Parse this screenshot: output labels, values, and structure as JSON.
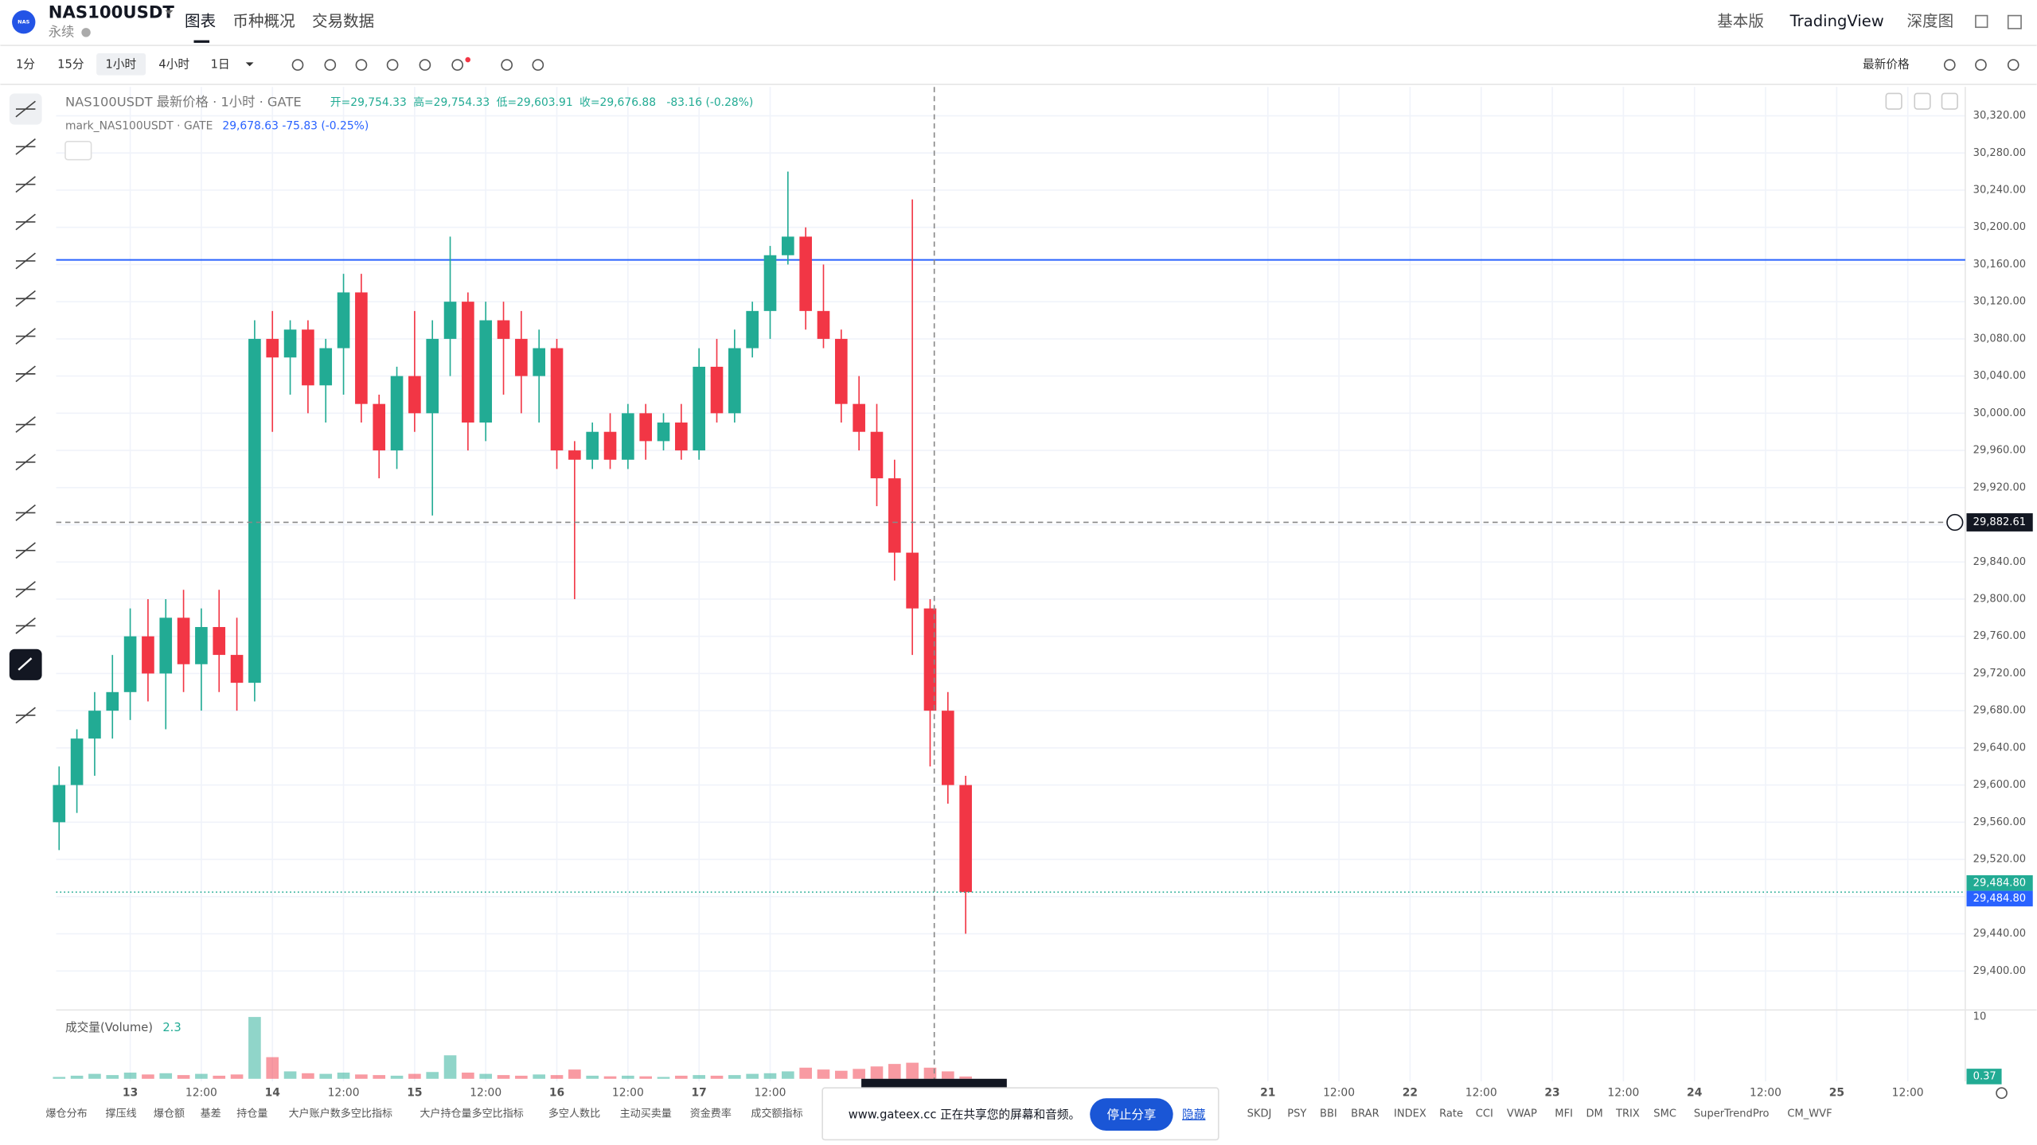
{
  "header": {
    "symbol": "NAS100USDT",
    "subtitle": "永续",
    "logo": "NAS",
    "tabs": [
      "图表",
      "币种概况",
      "交易数据"
    ],
    "right": [
      "基本版",
      "TradingView",
      "深度图"
    ]
  },
  "toolbar": {
    "intervals": [
      "1分",
      "15分",
      "1小时",
      "4小时",
      "1日"
    ],
    "price_type": "最新价格"
  },
  "legend": {
    "title": "NAS100USDT 最新价格 · 1小时 · GATE",
    "ohlc": [
      "开=29,754.33",
      "高=29,754.33",
      "低=29,603.91",
      "收=29,676.88"
    ],
    "change": "-83.16 (-0.28%)",
    "mark_title": "mark_NAS100USDT · GATE",
    "mark_values": "29,678.63 -75.83 (-0.25%)"
  },
  "chart_data": {
    "type": "candlestick",
    "up_color": "#22ab94",
    "down_color": "#f23645",
    "x": [
      -12,
      -9,
      -6,
      -3,
      0,
      3,
      6,
      9,
      12,
      15,
      18,
      21,
      24,
      27,
      30,
      33,
      36,
      39,
      42,
      45,
      48,
      51,
      54,
      57,
      60,
      63,
      66,
      69,
      72,
      75,
      78,
      81,
      84,
      87,
      90,
      93,
      96,
      99,
      102,
      105,
      108,
      111,
      114,
      117,
      120,
      123,
      126,
      129,
      132,
      135,
      138,
      141
    ],
    "open": [
      29560,
      29600,
      29650,
      29680,
      29700,
      29760,
      29720,
      29780,
      29730,
      29770,
      29740,
      29710,
      30080,
      30060,
      30090,
      30030,
      30070,
      30130,
      30010,
      29960,
      30040,
      30000,
      30080,
      30120,
      29990,
      30100,
      30080,
      30040,
      30070,
      29960,
      29950,
      29980,
      29950,
      30000,
      29970,
      29990,
      29960,
      30050,
      30000,
      30070,
      30110,
      30170,
      30190,
      30110,
      30080,
      30010,
      29980,
      29930,
      29850,
      29790,
      29680,
      29600
    ],
    "high": [
      29620,
      29660,
      29700,
      29740,
      29790,
      29800,
      29800,
      29810,
      29790,
      29810,
      29780,
      30100,
      30110,
      30100,
      30100,
      30080,
      30150,
      30150,
      30020,
      30050,
      30110,
      30100,
      30190,
      30130,
      30120,
      30120,
      30110,
      30090,
      30080,
      29970,
      29990,
      30000,
      30010,
      30010,
      30000,
      30010,
      30070,
      30080,
      30090,
      30120,
      30180,
      30260,
      30200,
      30160,
      30090,
      30040,
      30010,
      29950,
      30230,
      29800,
      29700,
      29610
    ],
    "low": [
      29530,
      29570,
      29610,
      29650,
      29670,
      29690,
      29660,
      29700,
      29680,
      29700,
      29680,
      29690,
      29980,
      30020,
      30000,
      29990,
      30020,
      29990,
      29930,
      29940,
      29980,
      29890,
      30040,
      29960,
      29970,
      30020,
      30000,
      29990,
      29940,
      29800,
      29940,
      29940,
      29940,
      29950,
      29960,
      29950,
      29950,
      29990,
      29990,
      30060,
      30080,
      30160,
      30090,
      30070,
      29990,
      29960,
      29900,
      29820,
      29740,
      29620,
      29580,
      29440
    ],
    "close": [
      29600,
      29650,
      29680,
      29700,
      29760,
      29720,
      29780,
      29730,
      29770,
      29740,
      29710,
      30080,
      30060,
      30090,
      30030,
      30070,
      30130,
      30010,
      29960,
      30040,
      30000,
      30080,
      30120,
      29990,
      30100,
      30080,
      30040,
      30070,
      29960,
      29950,
      29980,
      29950,
      30000,
      29970,
      29990,
      29960,
      30050,
      30000,
      30070,
      30110,
      30170,
      30190,
      30110,
      30080,
      30010,
      29980,
      29930,
      29850,
      29790,
      29680,
      29600,
      29484.8
    ],
    "xlim": [
      -12.5,
      309.7
    ],
    "xticks": [
      {
        "value": 0,
        "label": "13"
      },
      {
        "value": 12,
        "label": "12:00"
      },
      {
        "value": 24,
        "label": "14"
      },
      {
        "value": 36,
        "label": "12:00"
      },
      {
        "value": 48,
        "label": "15"
      },
      {
        "value": 60,
        "label": "12:00"
      },
      {
        "value": 72,
        "label": "16"
      },
      {
        "value": 84,
        "label": "12:00"
      },
      {
        "value": 96,
        "label": "17"
      },
      {
        "value": 108,
        "label": "12:00"
      },
      {
        "value": 192,
        "label": "21"
      },
      {
        "value": 204,
        "label": "12:00"
      },
      {
        "value": 216,
        "label": "22"
      },
      {
        "value": 228,
        "label": "12:00"
      },
      {
        "value": 240,
        "label": "23"
      },
      {
        "value": 252,
        "label": "12:00"
      },
      {
        "value": 264,
        "label": "24"
      },
      {
        "value": 276,
        "label": "12:00"
      },
      {
        "value": 288,
        "label": "25"
      },
      {
        "value": 300,
        "label": "12:00"
      }
    ],
    "ylim": [
      29358,
      30351
    ],
    "yticks": [
      {
        "value": 29400,
        "label": "29,400.00"
      },
      {
        "value": 29440,
        "label": "29,440.00"
      },
      {
        "value": 29480,
        "label": "29,480.00"
      },
      {
        "value": 29520,
        "label": "29,520.00"
      },
      {
        "value": 29560,
        "label": "29,560.00"
      },
      {
        "value": 29600,
        "label": "29,600.00"
      },
      {
        "value": 29640,
        "label": "29,640.00"
      },
      {
        "value": 29680,
        "label": "29,680.00"
      },
      {
        "value": 29720,
        "label": "29,720.00"
      },
      {
        "value": 29760,
        "label": "29,760.00"
      },
      {
        "value": 29800,
        "label": "29,800.00"
      },
      {
        "value": 29840,
        "label": "29,840.00"
      },
      {
        "value": 29880,
        "label": "29,880.00"
      },
      {
        "value": 29920,
        "label": "29,920.00"
      },
      {
        "value": 29960,
        "label": "29,960.00"
      },
      {
        "value": 30000,
        "label": "30,000.00"
      },
      {
        "value": 30040,
        "label": "30,040.00"
      },
      {
        "value": 30080,
        "label": "30,080.00"
      },
      {
        "value": 30120,
        "label": "30,120.00"
      },
      {
        "value": 30160,
        "label": "30,160.00"
      },
      {
        "value": 30200,
        "label": "30,200.00"
      },
      {
        "value": 30240,
        "label": "30,240.00"
      },
      {
        "value": 30280,
        "label": "30,280.00"
      },
      {
        "value": 30320,
        "label": "30,320.00"
      }
    ],
    "grid": true,
    "horizontal_line": {
      "value": 30165,
      "color": "#2962ff"
    },
    "crosshair": {
      "x": 135.7,
      "value": 29882.61,
      "label": "29,882.61"
    },
    "last_price": {
      "value": 29484.8,
      "label": "29,484.80",
      "color": "#22ab94",
      "mark_color": "#2962ff"
    },
    "volume": {
      "title": "成交量(Volume)",
      "current": "2.3",
      "values": [
        0.3,
        0.5,
        0.8,
        0.6,
        1.0,
        0.7,
        0.9,
        0.6,
        0.8,
        0.5,
        0.7,
        10,
        3.5,
        1.2,
        0.9,
        0.8,
        1.0,
        0.7,
        0.6,
        0.5,
        0.8,
        1.1,
        3.8,
        1.0,
        0.8,
        0.6,
        0.5,
        0.7,
        0.6,
        1.5,
        0.5,
        0.4,
        0.5,
        0.4,
        0.3,
        0.5,
        0.6,
        0.5,
        0.6,
        0.8,
        0.9,
        1.2,
        1.8,
        1.5,
        1.3,
        1.6,
        2.0,
        2.4,
        2.6,
        1.8,
        1.2,
        0.37
      ],
      "last_label": "0.37",
      "ylim": [
        0,
        10.5
      ],
      "yticks": [
        10
      ]
    }
  },
  "indicators_left": [
    "爆仓分布",
    "撑压线",
    "爆仓额",
    "基差",
    "持仓量",
    "大户账户数多空比指标",
    "大户持仓量多空比指标",
    "多空人数比",
    "主动买卖量",
    "资金费率",
    "成交额指标"
  ],
  "indicators_right": [
    "SKDJ",
    "PSY",
    "BBI",
    "BRAR",
    "INDEX",
    "Rate",
    "CCI",
    "VWAP",
    "MFI",
    "DM",
    "TRIX",
    "SMC",
    "SuperTrendPro",
    "CM_WVF"
  ],
  "share_popup": {
    "message": "www.gateex.cc 正在共享您的屏幕和音频。",
    "stop": "停止分享",
    "hide": "隐藏"
  }
}
